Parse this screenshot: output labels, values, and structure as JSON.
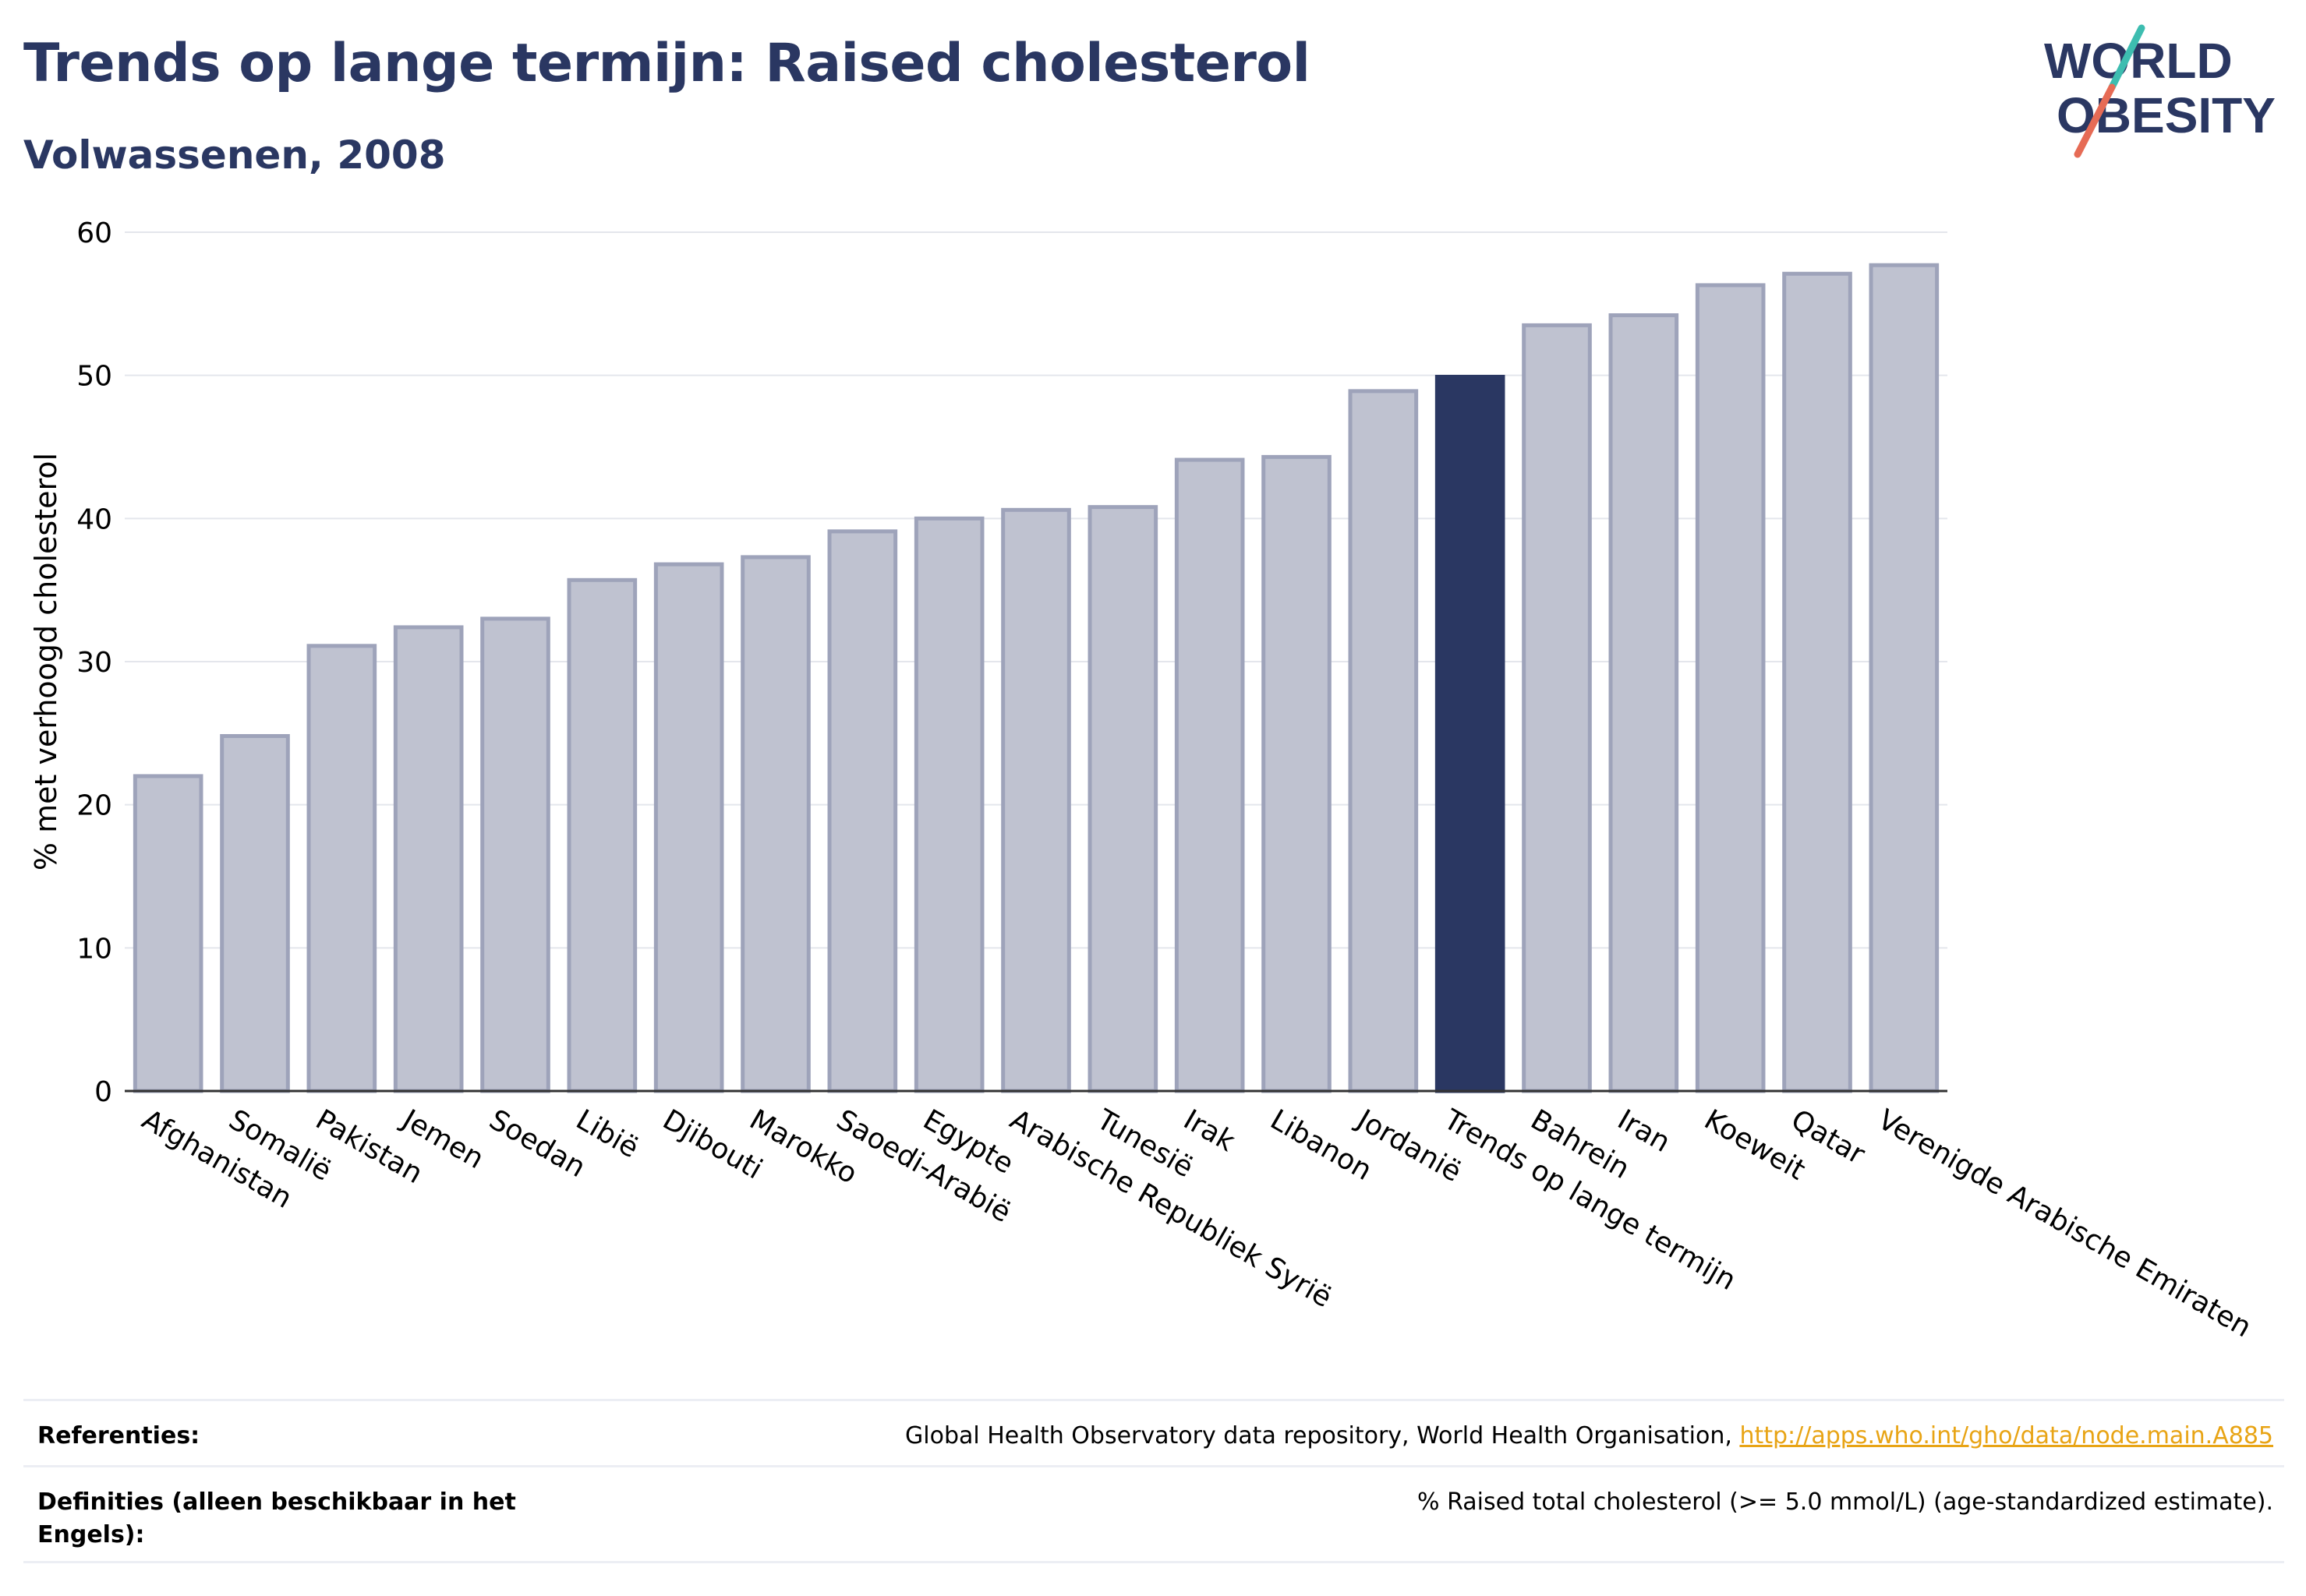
{
  "header": {
    "title": "Trends op lange termijn: Raised cholesterol",
    "subtitle": "Volwassenen, 2008"
  },
  "logo": {
    "line1": "WORLD",
    "line2": "OBESITY",
    "slash_colors": [
      "#3dbdb0",
      "#e66b55"
    ]
  },
  "colors": {
    "bar": "#bfc2d0",
    "bar_border": "#9ea3ba",
    "highlight": "#2a3762",
    "title": "#2a3762",
    "link": "#e8a415"
  },
  "chart_data": {
    "type": "bar",
    "title": "Trends op lange termijn: Raised cholesterol",
    "subtitle": "Volwassenen, 2008",
    "ylabel": "% met verhoogd cholesterol",
    "xlabel": "",
    "ylim": [
      0,
      60
    ],
    "yticks": [
      0,
      10,
      20,
      30,
      40,
      50,
      60
    ],
    "grid": true,
    "categories": [
      "Afghanistan",
      "Somalië",
      "Pakistan",
      "Jemen",
      "Soedan",
      "Libië",
      "Djibouti",
      "Marokko",
      "Saoedi-Arabië",
      "Egypte",
      "Arabische Republiek Syrië",
      "Tunesië",
      "Irak",
      "Libanon",
      "Jordanië",
      "Trends op lange termijn",
      "Bahrein",
      "Iran",
      "Koeweit",
      "Qatar",
      "Verenigde Arabische Emiraten"
    ],
    "values": [
      22.0,
      24.8,
      31.1,
      32.4,
      33.0,
      35.7,
      36.8,
      37.3,
      39.1,
      40.0,
      40.6,
      40.8,
      44.1,
      44.3,
      48.9,
      49.9,
      53.5,
      54.2,
      56.3,
      57.1,
      57.7
    ],
    "highlight": "Trends op lange termijn"
  },
  "references": {
    "ref_label": "Referenties:",
    "ref_text": "Global Health Observatory data repository, World Health Organisation, ",
    "ref_link": "http://apps.who.int/gho/data/node.main.A885",
    "def_label": "Definities (alleen beschikbaar in het Engels):",
    "def_text": "% Raised total cholesterol (>= 5.0 mmol/L) (age-standardized estimate)."
  }
}
